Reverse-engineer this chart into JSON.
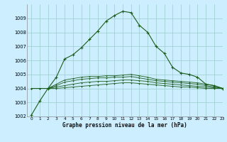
{
  "title": "Graphe pression niveau de la mer (hPa)",
  "background_color": "#cceeff",
  "grid_color": "#99cccc",
  "line_color": "#1a5c1a",
  "xlim": [
    -0.5,
    23
  ],
  "ylim": [
    1002,
    1010
  ],
  "yticks": [
    1002,
    1003,
    1004,
    1005,
    1006,
    1007,
    1008,
    1009
  ],
  "xticks": [
    0,
    1,
    2,
    3,
    4,
    5,
    6,
    7,
    8,
    9,
    10,
    11,
    12,
    13,
    14,
    15,
    16,
    17,
    18,
    19,
    20,
    21,
    22,
    23
  ],
  "series": [
    [
      1002.1,
      1003.1,
      1004.0,
      1004.8,
      1006.1,
      1006.4,
      1006.9,
      1007.5,
      1008.1,
      1008.8,
      1009.2,
      1009.5,
      1009.4,
      1008.5,
      1008.0,
      1007.0,
      1006.5,
      1005.5,
      1005.1,
      1005.0,
      1004.8,
      1004.3,
      1004.2,
      1004.0
    ],
    [
      1004.0,
      1004.0,
      1004.0,
      1004.0,
      1004.05,
      1004.1,
      1004.15,
      1004.2,
      1004.25,
      1004.3,
      1004.35,
      1004.4,
      1004.4,
      1004.35,
      1004.3,
      1004.25,
      1004.2,
      1004.15,
      1004.1,
      1004.1,
      1004.05,
      1004.0,
      1004.0,
      1004.0
    ],
    [
      1004.0,
      1004.0,
      1004.0,
      1004.1,
      1004.2,
      1004.3,
      1004.4,
      1004.45,
      1004.5,
      1004.5,
      1004.55,
      1004.6,
      1004.6,
      1004.55,
      1004.5,
      1004.4,
      1004.35,
      1004.3,
      1004.25,
      1004.2,
      1004.15,
      1004.1,
      1004.05,
      1004.0
    ],
    [
      1004.0,
      1004.0,
      1004.0,
      1004.2,
      1004.45,
      1004.55,
      1004.65,
      1004.7,
      1004.75,
      1004.75,
      1004.8,
      1004.8,
      1004.85,
      1004.75,
      1004.65,
      1004.55,
      1004.5,
      1004.45,
      1004.4,
      1004.35,
      1004.3,
      1004.2,
      1004.1,
      1004.0
    ],
    [
      1004.0,
      1004.0,
      1004.0,
      1004.3,
      1004.6,
      1004.7,
      1004.8,
      1004.85,
      1004.85,
      1004.9,
      1004.9,
      1004.95,
      1005.0,
      1004.9,
      1004.8,
      1004.65,
      1004.6,
      1004.55,
      1004.5,
      1004.45,
      1004.4,
      1004.3,
      1004.2,
      1004.0
    ]
  ]
}
